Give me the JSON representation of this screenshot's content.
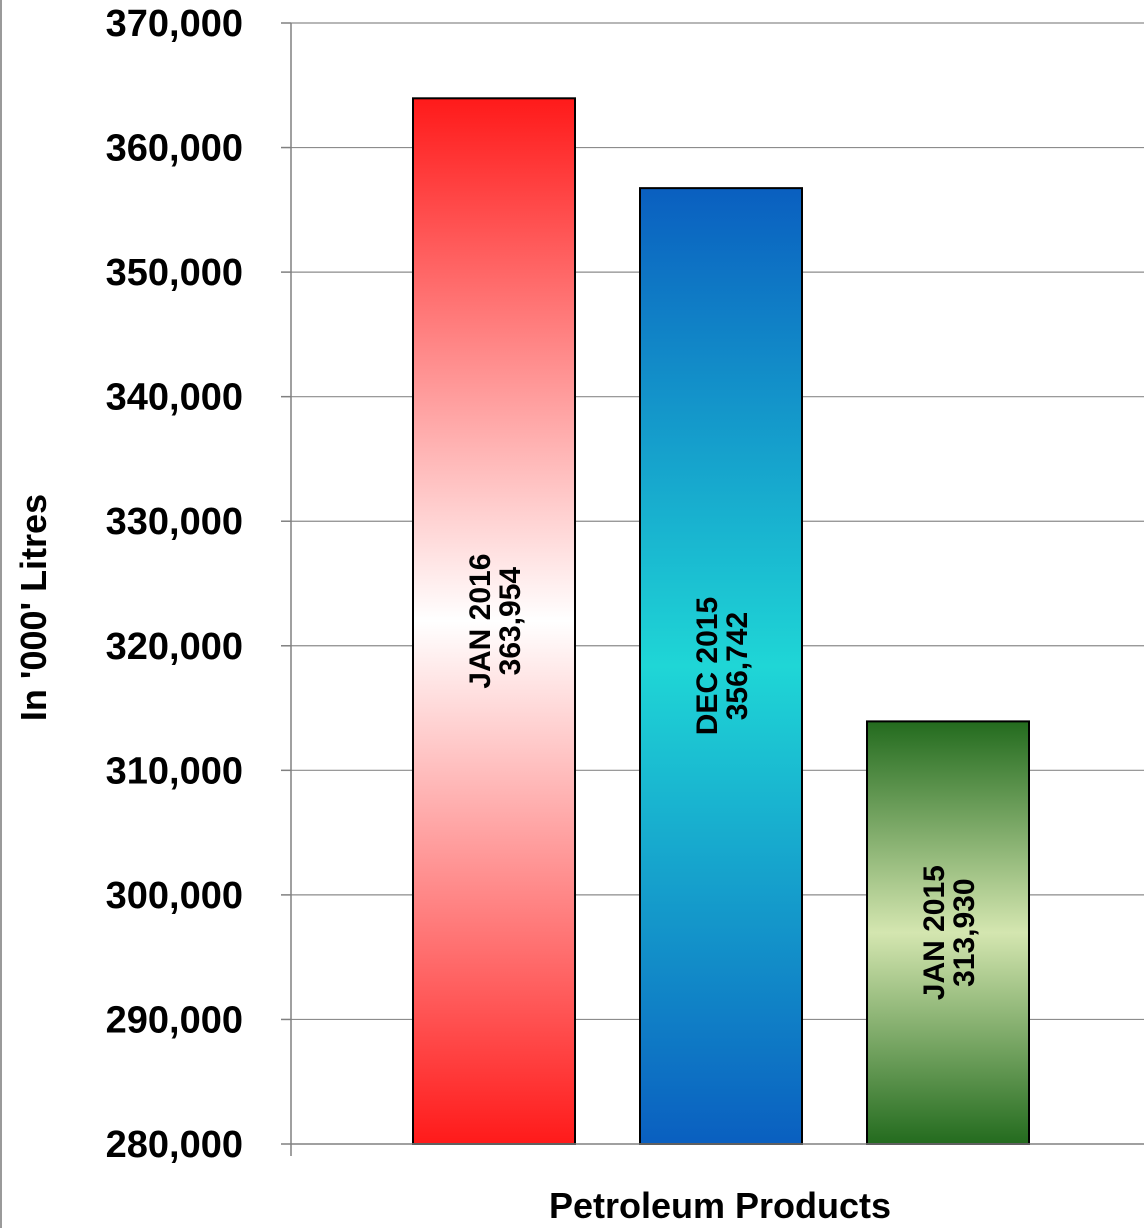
{
  "chart_data": {
    "type": "bar",
    "xlabel": "Petroleum Products",
    "ylabel": "In '000' Litres",
    "ylim": [
      280000,
      370000
    ],
    "yticks": [
      {
        "value": 280000,
        "label": "280,000"
      },
      {
        "value": 290000,
        "label": "290,000"
      },
      {
        "value": 300000,
        "label": "300,000"
      },
      {
        "value": 310000,
        "label": "310,000"
      },
      {
        "value": 320000,
        "label": "320,000"
      },
      {
        "value": 330000,
        "label": "330,000"
      },
      {
        "value": 340000,
        "label": "340,000"
      },
      {
        "value": 350000,
        "label": "350,000"
      },
      {
        "value": 360000,
        "label": "360,000"
      },
      {
        "value": 370000,
        "label": "370,000"
      }
    ],
    "grid": true,
    "bars": [
      {
        "category": "JAN 2016",
        "value": 363954,
        "value_label": "363,954",
        "color_dark": "#ff1a1a",
        "color_light": "#ffffff"
      },
      {
        "category": "DEC 2015",
        "value": 356742,
        "value_label": "356,742",
        "color_dark": "#0a5fc0",
        "color_light": "#1fd6d6"
      },
      {
        "category": "JAN 2015",
        "value": 313930,
        "value_label": "313,930",
        "color_dark": "#236b1e",
        "color_light": "#d4e6b0"
      }
    ]
  }
}
